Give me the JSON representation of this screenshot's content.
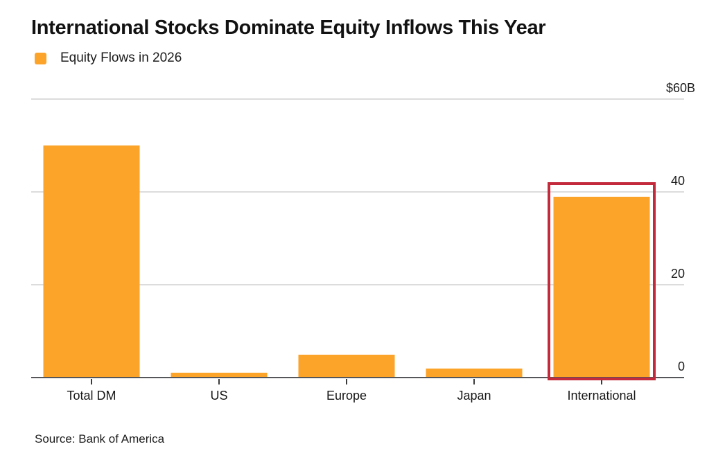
{
  "header": {
    "title": "International Stocks Dominate Equity Inflows This Year",
    "legend_label": "Equity Flows in 2026"
  },
  "footer": {
    "source": "Source: Bank of America"
  },
  "colors": {
    "bar_orange": "#FCA32A",
    "highlight_red": "#C32B3C",
    "gridline_gray": "#DCDCDC",
    "axis_dark": "#55565A",
    "text_black": "#121212"
  },
  "chart_data": {
    "type": "bar",
    "title": "International Stocks Dominate Equity Inflows This Year",
    "series_name": "Equity Flows in 2026",
    "categories": [
      "Total DM",
      "US",
      "Europe",
      "Japan",
      "International"
    ],
    "values": [
      50,
      1,
      5,
      2,
      39
    ],
    "unit": "$B",
    "xlabel": "",
    "ylabel": "",
    "ylim": [
      0,
      60
    ],
    "y_ticks": [
      {
        "label": "$60B",
        "value": 60
      },
      {
        "label": "40",
        "value": 40
      },
      {
        "label": "20",
        "value": 20
      },
      {
        "label": "0",
        "value": 0
      }
    ],
    "grid": "horizontal",
    "legend_position": "top-left",
    "bar_color": "#FCA32A",
    "highlight": {
      "category": "International",
      "box_color": "#C32B3C"
    },
    "source": "Source: Bank of America"
  }
}
